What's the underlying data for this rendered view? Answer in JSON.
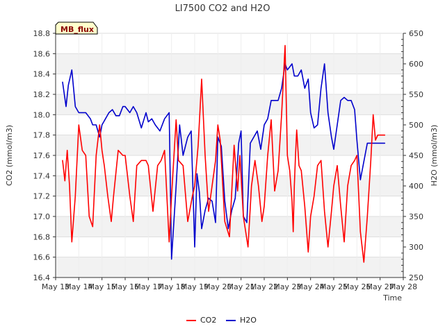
{
  "chart_data": {
    "type": "line",
    "title": "LI7500 CO2 and H2O",
    "site_label": "MB_flux",
    "xlabel": "Time",
    "ylabel_left": "CO2 (mmol/m3)",
    "ylabel_right": "H2O (mmol/m3)",
    "x_ticks": [
      "May 13",
      "May 14",
      "May 15",
      "May 16",
      "May 17",
      "May 18",
      "May 19",
      "May 20",
      "May 21",
      "May 22",
      "May 23",
      "May 24",
      "May 25",
      "May 26",
      "May 27",
      "May 28"
    ],
    "y_left_ticks": [
      "16.4",
      "16.6",
      "16.8",
      "17.0",
      "17.2",
      "17.4",
      "17.6",
      "17.8",
      "18.0",
      "18.2",
      "18.4",
      "18.6",
      "18.8"
    ],
    "y_right_ticks": [
      "250",
      "300",
      "350",
      "400",
      "450",
      "500",
      "550",
      "600",
      "650"
    ],
    "ylim_left": [
      16.4,
      18.8
    ],
    "ylim_right": [
      250,
      650
    ],
    "xlim_days": [
      13,
      28
    ],
    "x_unit": "day of May",
    "grid": true,
    "legend_position": "bottom-center",
    "series": [
      {
        "name": "CO2",
        "axis": "left",
        "color": "#ff0000",
        "x": [
          13.3,
          13.4,
          13.5,
          13.6,
          13.7,
          13.85,
          14.0,
          14.15,
          14.3,
          14.45,
          14.6,
          14.75,
          14.9,
          15.0,
          15.1,
          15.25,
          15.4,
          15.5,
          15.7,
          15.9,
          16.0,
          16.2,
          16.35,
          16.5,
          16.7,
          16.9,
          17.0,
          17.2,
          17.4,
          17.55,
          17.7,
          17.9,
          18.0,
          18.2,
          18.3,
          18.5,
          18.7,
          18.9,
          19.0,
          19.15,
          19.3,
          19.45,
          19.6,
          19.75,
          19.9,
          20.0,
          20.1,
          20.3,
          20.5,
          20.7,
          20.85,
          20.95,
          21.1,
          21.3,
          21.45,
          21.6,
          21.75,
          21.9,
          22.0,
          22.15,
          22.3,
          22.45,
          22.6,
          22.75,
          22.9,
          23.0,
          23.1,
          23.2,
          23.25,
          23.3,
          23.35,
          23.4,
          23.5,
          23.6,
          23.75,
          23.9,
          24.0,
          24.15,
          24.3,
          24.45,
          24.6,
          24.75,
          24.9,
          25.0,
          25.15,
          25.3,
          25.45,
          25.6,
          25.75,
          25.9,
          26.0,
          26.15,
          26.3,
          26.45,
          26.6,
          26.7,
          26.8,
          26.9,
          27.0,
          27.1,
          27.2
        ],
        "values": [
          17.55,
          17.35,
          17.65,
          17.3,
          16.75,
          17.2,
          17.9,
          17.65,
          17.6,
          17.0,
          16.9,
          17.6,
          17.9,
          17.65,
          17.5,
          17.2,
          16.95,
          17.2,
          17.65,
          17.6,
          17.6,
          17.2,
          16.95,
          17.5,
          17.55,
          17.55,
          17.5,
          17.05,
          17.5,
          17.55,
          17.65,
          16.75,
          17.2,
          17.95,
          17.55,
          17.5,
          16.95,
          17.2,
          17.3,
          17.7,
          18.35,
          17.6,
          17.05,
          17.3,
          17.55,
          17.9,
          17.75,
          16.95,
          16.8,
          17.7,
          17.25,
          17.6,
          17.0,
          16.7,
          17.3,
          17.55,
          17.3,
          16.95,
          17.1,
          17.6,
          17.95,
          17.25,
          17.45,
          18.0,
          18.68,
          17.6,
          17.45,
          17.15,
          16.85,
          17.3,
          17.6,
          17.85,
          17.5,
          17.45,
          17.1,
          16.65,
          17.0,
          17.2,
          17.5,
          17.55,
          17.05,
          16.7,
          17.05,
          17.3,
          17.5,
          17.1,
          16.75,
          17.3,
          17.5,
          17.55,
          17.6,
          16.85,
          16.55,
          17.0,
          17.55,
          18.0,
          17.75,
          17.8,
          17.8,
          17.8,
          17.8
        ]
      },
      {
        "name": "H2O",
        "axis": "right",
        "color": "#0000cc",
        "x": [
          13.3,
          13.45,
          13.55,
          13.7,
          13.85,
          14.0,
          14.1,
          14.3,
          14.5,
          14.6,
          14.75,
          14.9,
          15.0,
          15.15,
          15.3,
          15.45,
          15.6,
          15.75,
          15.9,
          16.0,
          16.2,
          16.35,
          16.5,
          16.7,
          16.9,
          17.0,
          17.15,
          17.3,
          17.5,
          17.7,
          17.9,
          18.0,
          18.2,
          18.35,
          18.5,
          18.7,
          18.85,
          19.0,
          19.1,
          19.2,
          19.3,
          19.45,
          19.6,
          19.75,
          19.9,
          20.0,
          20.15,
          20.3,
          20.45,
          20.6,
          20.75,
          20.9,
          21.0,
          21.1,
          21.25,
          21.4,
          21.55,
          21.7,
          21.85,
          22.0,
          22.15,
          22.3,
          22.45,
          22.6,
          22.75,
          22.9,
          23.0,
          23.1,
          23.2,
          23.3,
          23.45,
          23.6,
          23.75,
          23.9,
          24.0,
          24.15,
          24.3,
          24.45,
          24.6,
          24.75,
          24.9,
          25.0,
          25.15,
          25.3,
          25.45,
          25.6,
          25.75,
          25.9,
          26.0,
          26.15,
          26.3,
          26.45,
          26.6,
          26.7,
          26.8,
          26.9,
          27.0,
          27.1,
          27.2
        ],
        "values": [
          570,
          530,
          565,
          590,
          530,
          520,
          520,
          520,
          510,
          500,
          500,
          480,
          500,
          510,
          520,
          525,
          515,
          515,
          530,
          530,
          520,
          530,
          520,
          495,
          520,
          505,
          510,
          500,
          490,
          510,
          520,
          280,
          400,
          500,
          450,
          480,
          490,
          300,
          420,
          390,
          330,
          360,
          380,
          375,
          340,
          480,
          465,
          375,
          330,
          360,
          380,
          470,
          490,
          350,
          340,
          470,
          480,
          490,
          460,
          500,
          510,
          540,
          540,
          540,
          560,
          600,
          590,
          595,
          600,
          580,
          580,
          590,
          560,
          575,
          520,
          495,
          500,
          560,
          600,
          520,
          480,
          460,
          500,
          540,
          545,
          540,
          540,
          525,
          475,
          410,
          440,
          470,
          470,
          470,
          470,
          470,
          470,
          470,
          470
        ]
      }
    ]
  }
}
